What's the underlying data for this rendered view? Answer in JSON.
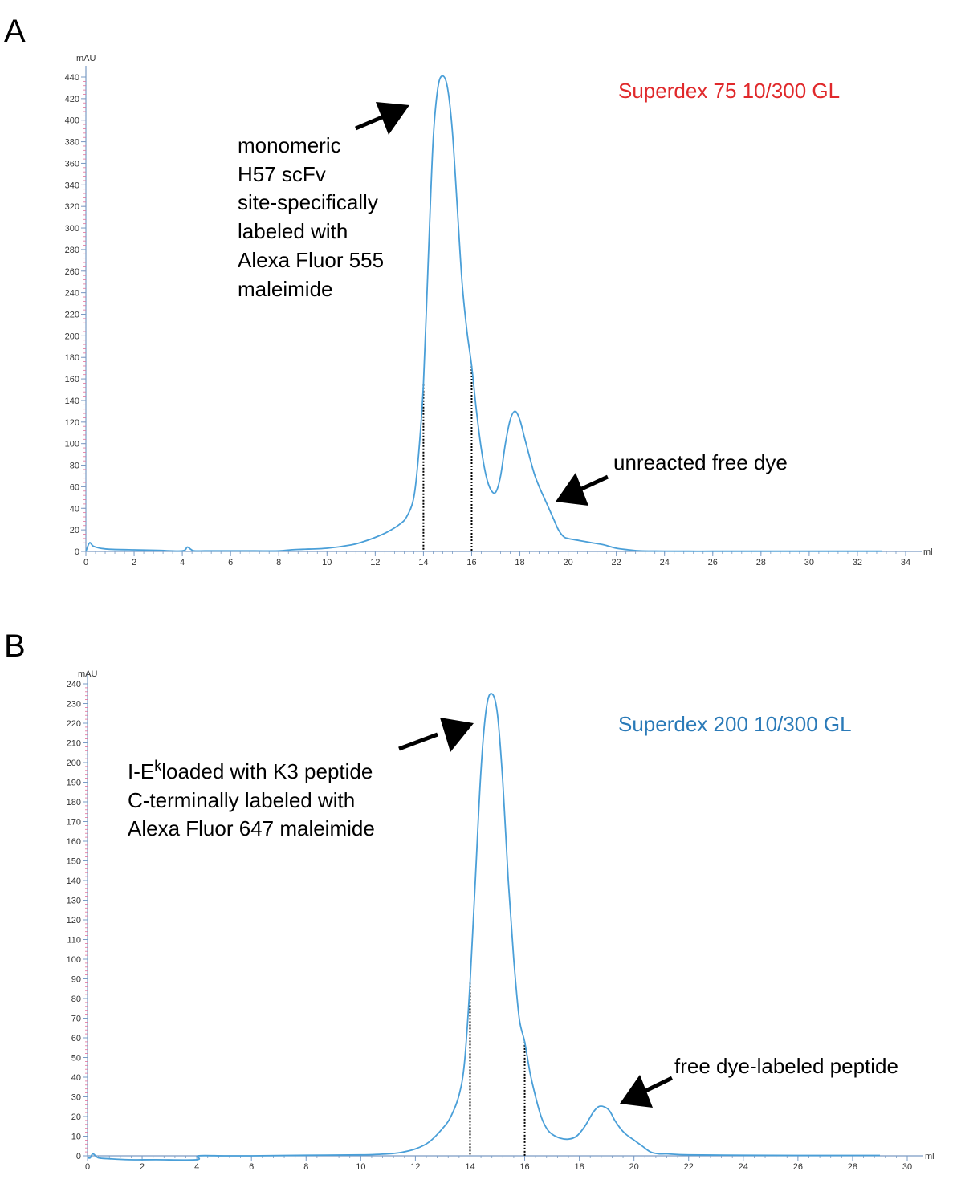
{
  "colors": {
    "trace": "#4a9fd8",
    "axis": "#7a9bc4",
    "label_a": "#e0292b",
    "label_b": "#2a7ab8"
  },
  "chart_data": [
    {
      "panel": "A",
      "type": "line",
      "column_label": "Superdex 75 10/300 GL",
      "xunit": "ml",
      "yunit": "mAU",
      "xlim": [
        0,
        34
      ],
      "ylim": [
        0,
        440
      ],
      "xticks": [
        0,
        2,
        4,
        6,
        8,
        10,
        12,
        14,
        16,
        18,
        20,
        22,
        24,
        26,
        28,
        30,
        32,
        34
      ],
      "yticks": [
        0,
        20,
        40,
        60,
        80,
        100,
        120,
        140,
        160,
        180,
        200,
        220,
        240,
        260,
        280,
        300,
        320,
        340,
        360,
        380,
        400,
        420,
        440
      ],
      "annotations": [
        {
          "lines": [
            "monomeric",
            "H57 scFv",
            "site-specifically",
            "labeled with",
            "Alexa Fluor 555",
            "maleimide"
          ]
        },
        {
          "lines": [
            "unreacted free dye"
          ]
        }
      ],
      "fraction_markers": [
        {
          "x": 14.0,
          "y": 155
        },
        {
          "x": 16.0,
          "y": 172
        }
      ],
      "series": [
        {
          "x": [
            0,
            0.15,
            0.3,
            0.6,
            1,
            2,
            3,
            4,
            4.2,
            4.35,
            4.5,
            5,
            6,
            7,
            8,
            8.5,
            9,
            10,
            11,
            11.5,
            12,
            12.5,
            13,
            13.3,
            13.6,
            13.8,
            14.0,
            14.2,
            14.4,
            14.6,
            14.8,
            15.0,
            15.2,
            15.4,
            15.6,
            15.8,
            16.0,
            16.2,
            16.4,
            16.6,
            16.8,
            17.0,
            17.2,
            17.4,
            17.6,
            17.8,
            18.0,
            18.2,
            18.4,
            18.6,
            18.8,
            19.0,
            19.2,
            19.4,
            19.6,
            19.8,
            20.0,
            20.5,
            21,
            21.5,
            22,
            22.5,
            23,
            24,
            25,
            26,
            28,
            30,
            32,
            33
          ],
          "y": [
            0,
            8,
            5,
            3,
            2,
            1.5,
            1,
            0.5,
            4,
            2,
            0.5,
            0.5,
            0.5,
            0.5,
            0.5,
            1.5,
            2,
            3,
            6,
            9,
            13,
            18,
            25,
            32,
            50,
            90,
            155,
            270,
            380,
            430,
            441,
            430,
            390,
            320,
            250,
            205,
            172,
            130,
            95,
            70,
            57,
            55,
            70,
            100,
            122,
            130,
            122,
            105,
            88,
            72,
            60,
            50,
            40,
            30,
            20,
            14,
            12,
            10,
            8,
            6,
            3,
            1.5,
            0.5,
            0.3,
            0.2,
            0.2,
            0.2,
            0.2,
            0.2,
            0.2
          ]
        }
      ]
    },
    {
      "panel": "B",
      "type": "line",
      "column_label": "Superdex 200 10/300 GL",
      "xunit": "ml",
      "yunit": "mAU",
      "xlim": [
        0,
        30
      ],
      "ylim": [
        0,
        240
      ],
      "xticks": [
        0,
        2,
        4,
        6,
        8,
        10,
        12,
        14,
        16,
        18,
        20,
        22,
        24,
        26,
        28,
        30
      ],
      "yticks": [
        0,
        10,
        20,
        30,
        40,
        50,
        60,
        70,
        80,
        90,
        100,
        110,
        120,
        130,
        140,
        150,
        160,
        170,
        180,
        190,
        200,
        210,
        220,
        230,
        240
      ],
      "annotations": [
        {
          "lines": [
            "I-E",
            "k",
            "loaded with K3 peptide",
            "C-terminally labeled with",
            "Alexa Fluor 647 maleimide"
          ]
        },
        {
          "lines": [
            "free dye-labeled peptide"
          ]
        }
      ],
      "fraction_markers": [
        {
          "x": 14.0,
          "y": 88
        },
        {
          "x": 16.0,
          "y": 58
        }
      ],
      "series": [
        {
          "x": [
            0,
            0.1,
            0.2,
            0.4,
            0.8,
            1.5,
            2.5,
            4.0,
            4.05,
            5,
            6,
            8,
            10,
            11,
            11.5,
            12,
            12.5,
            13,
            13.3,
            13.6,
            13.8,
            14.0,
            14.2,
            14.4,
            14.6,
            14.8,
            15.0,
            15.2,
            15.4,
            15.6,
            15.8,
            16.0,
            16.2,
            16.4,
            16.6,
            16.8,
            17.0,
            17.3,
            17.6,
            17.9,
            18.2,
            18.5,
            18.7,
            18.9,
            19.1,
            19.3,
            19.5,
            19.7,
            20.0,
            20.3,
            20.6,
            20.9,
            21.2,
            22,
            24,
            26,
            28,
            29
          ],
          "y": [
            -1,
            -1,
            1,
            -1,
            -1.5,
            -2,
            -2,
            -2,
            0,
            0,
            0,
            0.3,
            0.5,
            1,
            1.8,
            3.5,
            7,
            14,
            20,
            31,
            48,
            88,
            142,
            196,
            228,
            235,
            225,
            190,
            140,
            100,
            70,
            58,
            42,
            30,
            20,
            14,
            11,
            9,
            8.5,
            10,
            15,
            22,
            25,
            25,
            23,
            18,
            14,
            11,
            8,
            5,
            2,
            1,
            1,
            0.5,
            0.3,
            0.2,
            0.2,
            0.2
          ]
        }
      ]
    }
  ]
}
